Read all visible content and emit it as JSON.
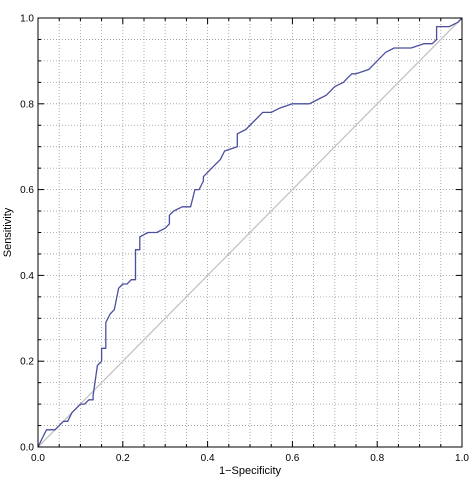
{
  "chart_data": {
    "type": "line",
    "title": "",
    "xlabel": "1−Specificity",
    "ylabel": "Sensitivity",
    "xlim": [
      0,
      1
    ],
    "ylim": [
      0,
      1
    ],
    "grid": true,
    "x_ticks": [
      0.0,
      0.2,
      0.4,
      0.6,
      0.8,
      1.0
    ],
    "y_ticks": [
      0.0,
      0.2,
      0.4,
      0.6,
      0.8,
      1.0
    ],
    "x_tick_labels": [
      "0.0",
      "0.2",
      "0.4",
      "0.6",
      "0.8",
      "1.0"
    ],
    "y_tick_labels": [
      "0.0",
      "0.2",
      "0.4",
      "0.6",
      "0.8",
      "1.0"
    ],
    "colors": {
      "roc": "#4b4f9e",
      "diagonal": "#c4c4c4",
      "grid": "#999999",
      "frame": "#000000"
    },
    "series": [
      {
        "kind": "roc-curve",
        "points": [
          [
            0.0,
            0.0
          ],
          [
            0.01,
            0.02
          ],
          [
            0.02,
            0.04
          ],
          [
            0.03,
            0.04
          ],
          [
            0.04,
            0.04
          ],
          [
            0.05,
            0.05
          ],
          [
            0.06,
            0.06
          ],
          [
            0.07,
            0.06
          ],
          [
            0.08,
            0.08
          ],
          [
            0.09,
            0.09
          ],
          [
            0.1,
            0.1
          ],
          [
            0.11,
            0.1
          ],
          [
            0.12,
            0.11
          ],
          [
            0.13,
            0.11
          ],
          [
            0.13,
            0.12
          ],
          [
            0.14,
            0.19
          ],
          [
            0.15,
            0.2
          ],
          [
            0.15,
            0.23
          ],
          [
            0.16,
            0.23
          ],
          [
            0.16,
            0.29
          ],
          [
            0.17,
            0.31
          ],
          [
            0.18,
            0.32
          ],
          [
            0.19,
            0.37
          ],
          [
            0.2,
            0.38
          ],
          [
            0.21,
            0.38
          ],
          [
            0.22,
            0.39
          ],
          [
            0.23,
            0.39
          ],
          [
            0.23,
            0.46
          ],
          [
            0.24,
            0.46
          ],
          [
            0.24,
            0.49
          ],
          [
            0.26,
            0.5
          ],
          [
            0.28,
            0.5
          ],
          [
            0.3,
            0.51
          ],
          [
            0.31,
            0.52
          ],
          [
            0.31,
            0.54
          ],
          [
            0.32,
            0.55
          ],
          [
            0.34,
            0.56
          ],
          [
            0.36,
            0.56
          ],
          [
            0.37,
            0.6
          ],
          [
            0.38,
            0.6
          ],
          [
            0.39,
            0.62
          ],
          [
            0.39,
            0.63
          ],
          [
            0.41,
            0.65
          ],
          [
            0.43,
            0.67
          ],
          [
            0.44,
            0.69
          ],
          [
            0.47,
            0.7
          ],
          [
            0.47,
            0.73
          ],
          [
            0.49,
            0.74
          ],
          [
            0.51,
            0.76
          ],
          [
            0.52,
            0.77
          ],
          [
            0.53,
            0.78
          ],
          [
            0.55,
            0.78
          ],
          [
            0.57,
            0.79
          ],
          [
            0.6,
            0.8
          ],
          [
            0.64,
            0.8
          ],
          [
            0.66,
            0.81
          ],
          [
            0.68,
            0.82
          ],
          [
            0.7,
            0.84
          ],
          [
            0.72,
            0.85
          ],
          [
            0.73,
            0.86
          ],
          [
            0.74,
            0.87
          ],
          [
            0.75,
            0.87
          ],
          [
            0.78,
            0.88
          ],
          [
            0.79,
            0.89
          ],
          [
            0.8,
            0.9
          ],
          [
            0.81,
            0.91
          ],
          [
            0.82,
            0.92
          ],
          [
            0.84,
            0.93
          ],
          [
            0.86,
            0.93
          ],
          [
            0.88,
            0.93
          ],
          [
            0.91,
            0.94
          ],
          [
            0.93,
            0.94
          ],
          [
            0.94,
            0.95
          ],
          [
            0.94,
            0.98
          ],
          [
            0.96,
            0.98
          ],
          [
            0.97,
            0.98
          ],
          [
            0.99,
            0.99
          ],
          [
            1.0,
            1.0
          ]
        ]
      },
      {
        "kind": "reference-diagonal",
        "points": [
          [
            0.0,
            0.0
          ],
          [
            1.0,
            1.0
          ]
        ]
      }
    ]
  }
}
